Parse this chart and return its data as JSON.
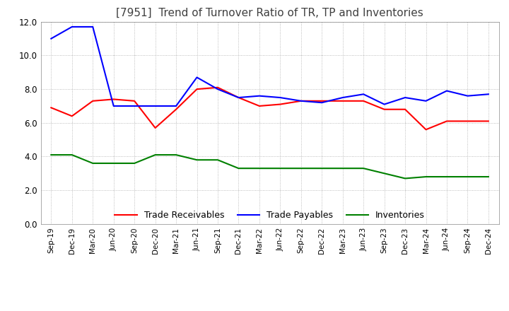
{
  "title": "[7951]  Trend of Turnover Ratio of TR, TP and Inventories",
  "title_fontsize": 11,
  "x_labels": [
    "Sep-19",
    "Dec-19",
    "Mar-20",
    "Jun-20",
    "Sep-20",
    "Dec-20",
    "Mar-21",
    "Jun-21",
    "Sep-21",
    "Dec-21",
    "Mar-22",
    "Jun-22",
    "Sep-22",
    "Dec-22",
    "Mar-23",
    "Jun-23",
    "Sep-23",
    "Dec-23",
    "Mar-24",
    "Jun-24",
    "Sep-24",
    "Dec-24"
  ],
  "trade_receivables": [
    6.9,
    6.4,
    7.3,
    7.4,
    7.3,
    5.7,
    6.8,
    8.0,
    8.1,
    7.5,
    7.0,
    7.1,
    7.3,
    7.3,
    7.3,
    7.3,
    6.8,
    6.8,
    5.6,
    6.1,
    6.1,
    6.1
  ],
  "trade_payables": [
    11.0,
    11.7,
    11.7,
    7.0,
    7.0,
    7.0,
    7.0,
    8.7,
    8.0,
    7.5,
    7.6,
    7.5,
    7.3,
    7.2,
    7.5,
    7.7,
    7.1,
    7.5,
    7.3,
    7.9,
    7.6,
    7.7
  ],
  "inventories": [
    4.1,
    4.1,
    3.6,
    3.6,
    3.6,
    4.1,
    4.1,
    3.8,
    3.8,
    3.3,
    3.3,
    3.3,
    3.3,
    3.3,
    3.3,
    3.3,
    3.0,
    2.7,
    2.8,
    2.8,
    2.8,
    2.8
  ],
  "tr_color": "#ff0000",
  "tp_color": "#0000ff",
  "inv_color": "#008000",
  "ylim": [
    0.0,
    12.0
  ],
  "yticks": [
    0.0,
    2.0,
    4.0,
    6.0,
    8.0,
    10.0,
    12.0
  ],
  "legend_labels": [
    "Trade Receivables",
    "Trade Payables",
    "Inventories"
  ],
  "bg_color": "#ffffff",
  "grid_color": "#aaaaaa",
  "line_width": 1.5
}
